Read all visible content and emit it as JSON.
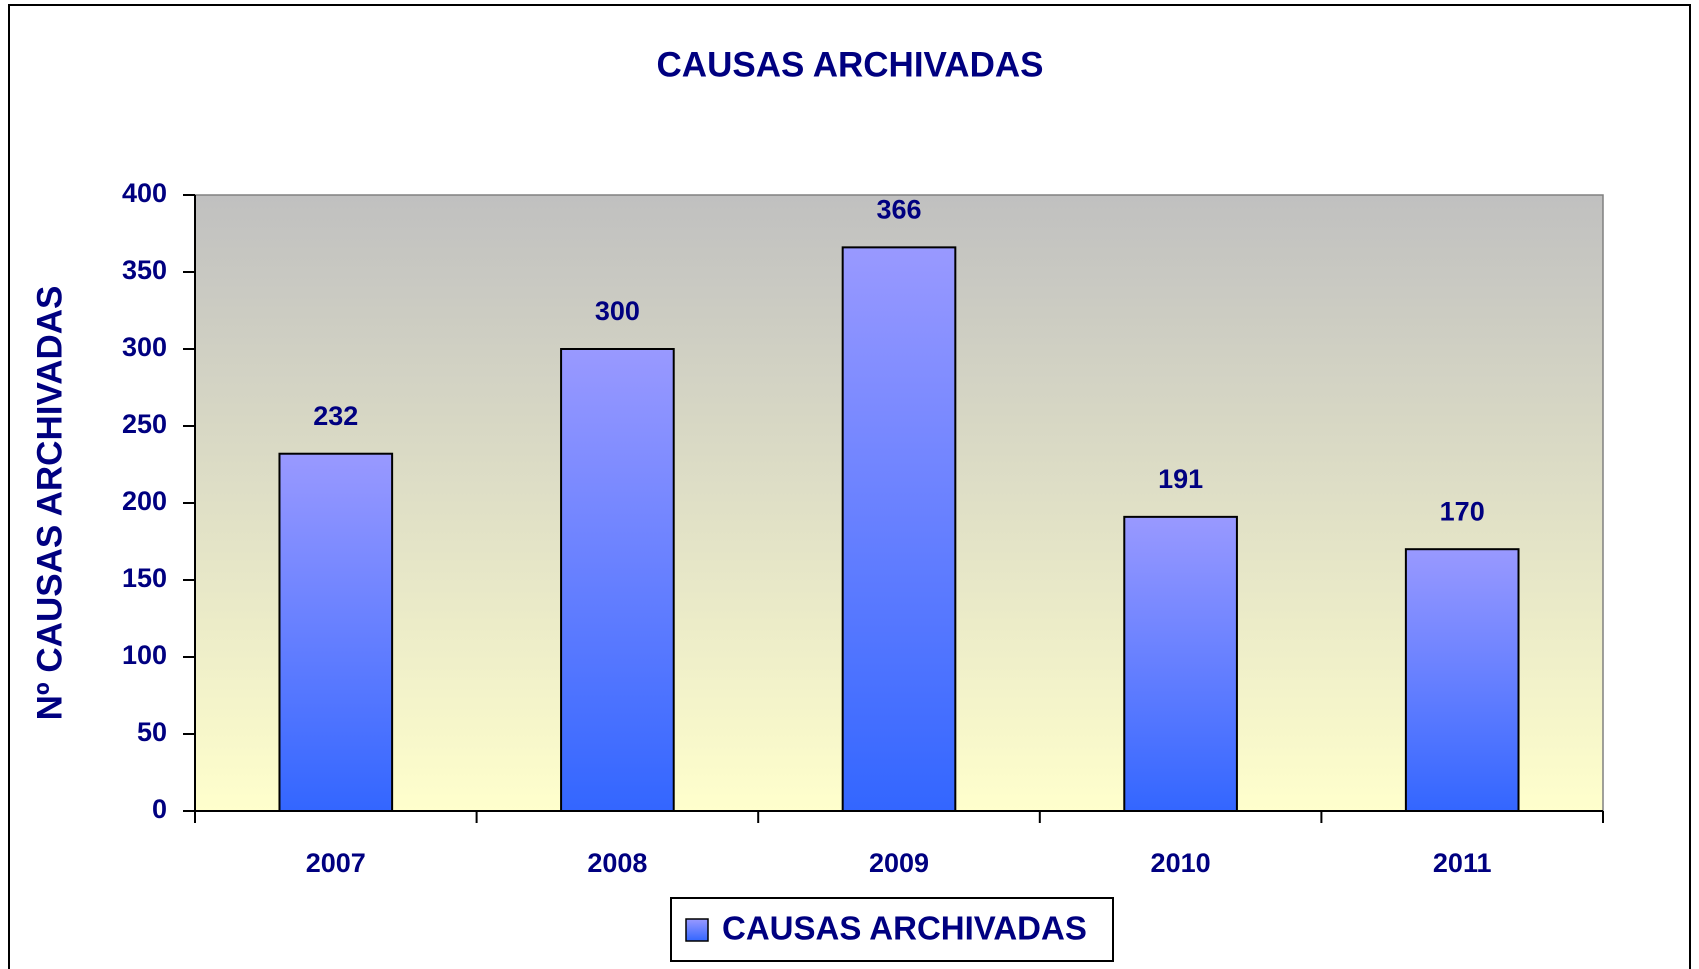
{
  "chart_data": {
    "type": "bar",
    "title": "CAUSAS ARCHIVADAS",
    "y_label": "Nº CAUSAS ARCHIVADAS",
    "categories": [
      "2007",
      "2008",
      "2009",
      "2010",
      "2011"
    ],
    "series": [
      {
        "name": "CAUSAS ARCHIVADAS",
        "color": "#9999ff",
        "values": [
          232,
          300,
          366,
          191,
          170
        ]
      }
    ],
    "ylim": [
      0,
      400
    ],
    "yticks": [
      0,
      50,
      100,
      150,
      200,
      250,
      300,
      350,
      400
    ],
    "legend": "bottom"
  }
}
